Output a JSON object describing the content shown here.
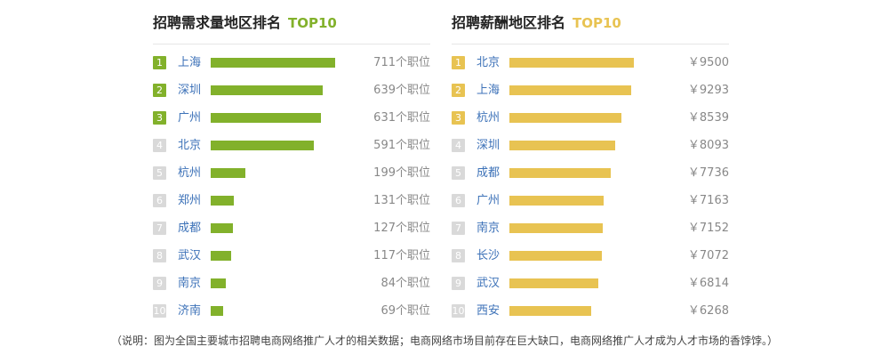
{
  "chart_data": [
    {
      "type": "bar",
      "orientation": "horizontal",
      "title": "招聘需求量地区排名",
      "title_tag": "TOP10",
      "accent_color": "#82b12b",
      "top_rank_color": "#82b12b",
      "other_rank_color": "#d9d9d9",
      "value_suffix": "个职位",
      "value_prefix": "",
      "categories": [
        "上海",
        "深圳",
        "广州",
        "北京",
        "杭州",
        "郑州",
        "成都",
        "武汉",
        "南京",
        "济南"
      ],
      "values": [
        711,
        639,
        631,
        591,
        199,
        131,
        127,
        117,
        84,
        69
      ],
      "labels": [
        "711个职位",
        "639个职位",
        "631个职位",
        "591个职位",
        "199个职位",
        "131个职位",
        "127个职位",
        "117个职位",
        "84个职位",
        "69个职位"
      ]
    },
    {
      "type": "bar",
      "orientation": "horizontal",
      "title": "招聘薪酬地区排名",
      "title_tag": "TOP10",
      "accent_color": "#e8c352",
      "top_rank_color": "#e8c352",
      "other_rank_color": "#d9d9d9",
      "value_suffix": "",
      "value_prefix": "￥",
      "categories": [
        "北京",
        "上海",
        "杭州",
        "深圳",
        "成都",
        "广州",
        "南京",
        "长沙",
        "武汉",
        "西安"
      ],
      "values": [
        9500,
        9293,
        8539,
        8093,
        7736,
        7163,
        7152,
        7072,
        6814,
        6268
      ],
      "labels": [
        "￥9500",
        "￥9293",
        "￥8539",
        "￥8093",
        "￥7736",
        "￥7163",
        "￥7152",
        "￥7072",
        "￥6814",
        "￥6268"
      ]
    }
  ],
  "footnote": "（说明：图为全国主要城市招聘电商网络推广人才的相关数据；电商网络市场目前存在巨大缺口，电商网络推广人才成为人才市场的香饽饽。）"
}
